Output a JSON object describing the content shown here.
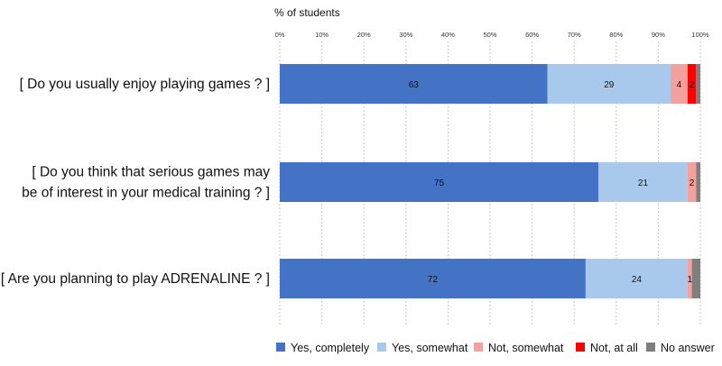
{
  "chart_data": {
    "type": "bar",
    "orientation": "horizontal",
    "stacked": true,
    "axis_title": "% of students",
    "xlim": [
      0,
      100
    ],
    "ticks": [
      "0%",
      "10%",
      "20%",
      "30%",
      "40%",
      "50%",
      "60%",
      "70%",
      "80%",
      "90%",
      "100%"
    ],
    "grid": "vertical dashed",
    "legend_position": "bottom",
    "categories": [
      [
        "[ Do you usually enjoy playing games ? ]"
      ],
      [
        "[ Do you think that serious games may",
        "be of interest in your medical training ? ]"
      ],
      [
        "[ Are you planning to play ADRENALINE ? ]"
      ]
    ],
    "series": [
      {
        "name": "Yes, completely",
        "color": "#4472c4",
        "values": [
          63,
          75,
          72
        ],
        "labels": [
          "63",
          "75",
          "72"
        ]
      },
      {
        "name": "Yes, somewhat",
        "color": "#a8c8ec",
        "values": [
          29,
          21,
          24
        ],
        "labels": [
          "29",
          "21",
          "24"
        ]
      },
      {
        "name": "Not, somewhat",
        "color": "#f4a09c",
        "values": [
          4,
          2,
          1
        ],
        "labels": [
          "4",
          "2",
          "1"
        ]
      },
      {
        "name": "Not, at all",
        "color": "#ff0000",
        "values": [
          2,
          0,
          0
        ],
        "labels": [
          "2",
          "",
          ""
        ]
      },
      {
        "name": "No answer",
        "color": "#7f7f7f",
        "values": [
          1,
          1,
          2
        ],
        "labels": [
          "",
          "",
          ""
        ]
      }
    ]
  }
}
